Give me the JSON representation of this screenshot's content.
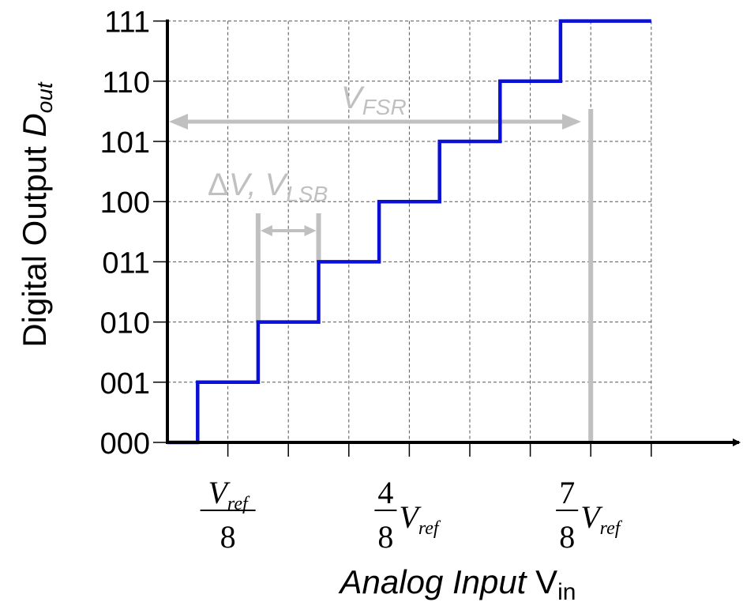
{
  "chart_data": {
    "type": "line",
    "step": true,
    "ylabel": {
      "main": "Digital Output ",
      "var": "D",
      "sub": "out"
    },
    "xlabel": {
      "main": "Analog Input ",
      "var": "V",
      "sub": "in"
    },
    "x_unit": "Vref/8",
    "xlim": [
      -1,
      7
    ],
    "y_ticks": [
      "000",
      "001",
      "010",
      "011",
      "100",
      "101",
      "110",
      "111"
    ],
    "x_tick_labels": [
      {
        "x": 0,
        "num": "V",
        "num_sub": "ref",
        "den": "8"
      },
      {
        "x": 3,
        "frac_num": "4",
        "frac_den": "8",
        "var": "V",
        "var_sub": "ref"
      },
      {
        "x": 6,
        "frac_num": "7",
        "frac_den": "8",
        "var": "V",
        "var_sub": "ref"
      }
    ],
    "grid": true,
    "series": [
      {
        "color": "#0a10d6",
        "points": [
          [
            -1,
            0
          ],
          [
            -0.5,
            0
          ],
          [
            -0.5,
            1
          ],
          [
            0.5,
            1
          ],
          [
            0.5,
            2
          ],
          [
            1.5,
            2
          ],
          [
            1.5,
            3
          ],
          [
            2.5,
            3
          ],
          [
            2.5,
            4
          ],
          [
            3.5,
            4
          ],
          [
            3.5,
            5
          ],
          [
            4.5,
            5
          ],
          [
            4.5,
            6
          ],
          [
            5.5,
            6
          ],
          [
            5.5,
            7
          ],
          [
            7,
            7
          ]
        ]
      }
    ],
    "annotations": {
      "fsr": {
        "label_var": "V",
        "label_sub": "FSR",
        "color": "#c0c0c0"
      },
      "lsb": {
        "delta": "Δ",
        "label_var": "V",
        "sep": ", ",
        "label_var2": "V",
        "label_sub": "LSB",
        "color": "#c0c0c0"
      }
    }
  }
}
